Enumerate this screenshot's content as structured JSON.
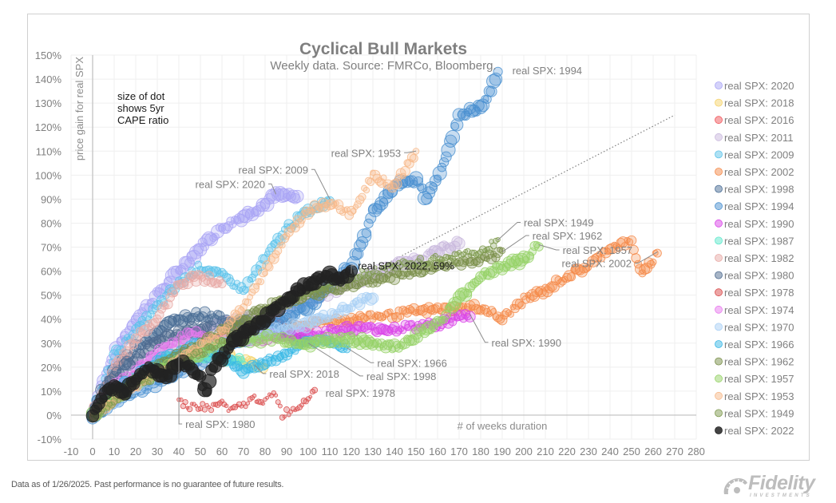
{
  "chart_data": {
    "type": "scatter",
    "title": "Cyclical Bull Markets",
    "subtitle": "Weekly data.  Source: FMRCo, Bloomberg.",
    "xlabel": "# of weeks duration",
    "ylabel": "price gain for real SPX",
    "note": [
      "size of dot",
      "shows 5yr",
      "CAPE ratio"
    ],
    "xlim": [
      -10,
      280
    ],
    "ylim": [
      -10,
      150
    ],
    "x_ticks": [
      -10,
      0,
      10,
      20,
      30,
      40,
      50,
      60,
      70,
      80,
      90,
      100,
      110,
      120,
      130,
      140,
      150,
      160,
      170,
      180,
      190,
      200,
      210,
      220,
      230,
      240,
      250,
      260,
      270,
      280
    ],
    "y_ticks": [
      -10,
      0,
      10,
      20,
      30,
      40,
      50,
      60,
      70,
      80,
      90,
      100,
      110,
      120,
      130,
      140,
      150
    ],
    "y_tick_labels": [
      "-10%",
      "0%",
      "10%",
      "20%",
      "30%",
      "40%",
      "50%",
      "60%",
      "70%",
      "80%",
      "90%",
      "100%",
      "110%",
      "120%",
      "130%",
      "140%",
      "150%"
    ],
    "grid": true,
    "legend_position": "right",
    "reference_line": {
      "style": "dotted",
      "from": [
        0,
        0
      ],
      "to": [
        270,
        125
      ]
    },
    "series": [
      {
        "name": "real SPX: 2020",
        "color": "#aaa5f5",
        "size": 1.1,
        "anchors": [
          [
            0,
            0
          ],
          [
            5,
            15
          ],
          [
            10,
            25
          ],
          [
            20,
            40
          ],
          [
            30,
            50
          ],
          [
            40,
            60
          ],
          [
            50,
            70
          ],
          [
            60,
            78
          ],
          [
            70,
            83
          ],
          [
            80,
            88
          ],
          [
            85,
            92
          ],
          [
            95,
            90
          ]
        ]
      },
      {
        "name": "real SPX: 2018",
        "color": "#f5d36b",
        "size": 0.8,
        "anchors": [
          [
            0,
            0
          ],
          [
            10,
            8
          ],
          [
            20,
            12
          ],
          [
            30,
            18
          ],
          [
            40,
            22
          ],
          [
            50,
            26
          ],
          [
            60,
            28
          ],
          [
            70,
            22
          ],
          [
            80,
            20
          ]
        ]
      },
      {
        "name": "real SPX: 2016",
        "color": "#f0555a",
        "size": 0.7,
        "anchors": [
          [
            0,
            0
          ],
          [
            10,
            7
          ],
          [
            20,
            13
          ],
          [
            30,
            18
          ],
          [
            40,
            24
          ],
          [
            50,
            28
          ],
          [
            60,
            34
          ],
          [
            70,
            38
          ],
          [
            80,
            40
          ],
          [
            90,
            38
          ]
        ]
      },
      {
        "name": "real SPX: 2011",
        "color": "#c9b8dd",
        "size": 0.95,
        "anchors": [
          [
            0,
            0
          ],
          [
            20,
            20
          ],
          [
            40,
            30
          ],
          [
            60,
            38
          ],
          [
            80,
            42
          ],
          [
            100,
            48
          ],
          [
            120,
            55
          ],
          [
            140,
            62
          ],
          [
            160,
            68
          ],
          [
            170,
            72
          ]
        ]
      },
      {
        "name": "real SPX: 2009",
        "color": "#5ec3ea",
        "size": 0.85,
        "anchors": [
          [
            0,
            0
          ],
          [
            10,
            25
          ],
          [
            20,
            35
          ],
          [
            30,
            45
          ],
          [
            40,
            55
          ],
          [
            50,
            62
          ],
          [
            60,
            58
          ],
          [
            70,
            52
          ],
          [
            80,
            65
          ],
          [
            90,
            78
          ],
          [
            100,
            85
          ],
          [
            110,
            90
          ]
        ]
      },
      {
        "name": "real SPX: 2002",
        "color": "#f48a4a",
        "size": 0.85,
        "anchors": [
          [
            0,
            0
          ],
          [
            20,
            15
          ],
          [
            40,
            25
          ],
          [
            60,
            30
          ],
          [
            80,
            35
          ],
          [
            100,
            38
          ],
          [
            120,
            40
          ],
          [
            140,
            42
          ],
          [
            160,
            44
          ],
          [
            180,
            45
          ],
          [
            190,
            40
          ],
          [
            200,
            48
          ],
          [
            210,
            52
          ],
          [
            220,
            58
          ],
          [
            230,
            62
          ],
          [
            240,
            70
          ],
          [
            250,
            72
          ],
          [
            255,
            58
          ],
          [
            262,
            68
          ]
        ]
      },
      {
        "name": "real SPX: 1998",
        "color": "#4a6d95",
        "size": 1.05,
        "anchors": [
          [
            0,
            0
          ],
          [
            10,
            18
          ],
          [
            20,
            28
          ],
          [
            30,
            35
          ],
          [
            40,
            40
          ],
          [
            50,
            42
          ],
          [
            60,
            40
          ],
          [
            70,
            38
          ],
          [
            80,
            36
          ],
          [
            90,
            34
          ],
          [
            100,
            30
          ]
        ]
      },
      {
        "name": "real SPX: 1994",
        "color": "#4a90d0",
        "size": 1.1,
        "anchors": [
          [
            0,
            0
          ],
          [
            20,
            10
          ],
          [
            40,
            18
          ],
          [
            60,
            28
          ],
          [
            80,
            36
          ],
          [
            100,
            45
          ],
          [
            110,
            55
          ],
          [
            120,
            62
          ],
          [
            125,
            72
          ],
          [
            130,
            85
          ],
          [
            140,
            95
          ],
          [
            150,
            98
          ],
          [
            155,
            90
          ],
          [
            165,
            110
          ],
          [
            170,
            125
          ],
          [
            180,
            128
          ],
          [
            185,
            135
          ],
          [
            188,
            144
          ]
        ]
      },
      {
        "name": "real SPX: 1990",
        "color": "#d944e8",
        "size": 0.9,
        "anchors": [
          [
            0,
            0
          ],
          [
            20,
            15
          ],
          [
            40,
            25
          ],
          [
            60,
            30
          ],
          [
            80,
            32
          ],
          [
            100,
            34
          ],
          [
            120,
            36
          ],
          [
            140,
            36
          ],
          [
            160,
            38
          ],
          [
            175,
            42
          ]
        ]
      },
      {
        "name": "real SPX: 1987",
        "color": "#5ee8cc",
        "size": 0.85,
        "anchors": [
          [
            0,
            0
          ],
          [
            10,
            10
          ],
          [
            20,
            16
          ],
          [
            30,
            22
          ],
          [
            40,
            24
          ],
          [
            50,
            25
          ],
          [
            60,
            24
          ],
          [
            70,
            22
          ]
        ]
      },
      {
        "name": "real SPX: 1982",
        "color": "#e8aaa6",
        "size": 0.9,
        "anchors": [
          [
            0,
            0
          ],
          [
            10,
            20
          ],
          [
            20,
            32
          ],
          [
            30,
            40
          ],
          [
            40,
            55
          ],
          [
            50,
            58
          ],
          [
            60,
            55
          ]
        ]
      },
      {
        "name": "real SPX: 1980",
        "color": "#4f6b8f",
        "size": 1.0,
        "anchors": [
          [
            0,
            0
          ],
          [
            5,
            12
          ],
          [
            15,
            20
          ],
          [
            25,
            28
          ],
          [
            35,
            32
          ],
          [
            45,
            35
          ],
          [
            55,
            38
          ]
        ]
      },
      {
        "name": "real SPX: 1978",
        "color": "#d94a4a",
        "size": 0.45,
        "anchors": [
          [
            40,
            6
          ],
          [
            45,
            4
          ],
          [
            55,
            3
          ],
          [
            60,
            5
          ],
          [
            65,
            2
          ],
          [
            70,
            4
          ],
          [
            75,
            7
          ],
          [
            80,
            6
          ],
          [
            85,
            9
          ],
          [
            88,
            0
          ],
          [
            90,
            1
          ],
          [
            95,
            3
          ],
          [
            100,
            8
          ],
          [
            103,
            11
          ]
        ]
      },
      {
        "name": "real SPX: 1974",
        "color": "#e87aee",
        "size": 0.8,
        "anchors": [
          [
            0,
            0
          ],
          [
            10,
            12
          ],
          [
            20,
            18
          ],
          [
            30,
            26
          ],
          [
            40,
            32
          ],
          [
            50,
            34
          ],
          [
            60,
            30
          ]
        ]
      },
      {
        "name": "real SPX: 1970",
        "color": "#a9d0f5",
        "size": 0.95,
        "anchors": [
          [
            0,
            0
          ],
          [
            20,
            12
          ],
          [
            40,
            22
          ],
          [
            60,
            30
          ],
          [
            80,
            34
          ],
          [
            100,
            38
          ],
          [
            120,
            45
          ],
          [
            130,
            50
          ]
        ]
      },
      {
        "name": "real SPX: 1966",
        "color": "#3ab8e6",
        "size": 0.9,
        "anchors": [
          [
            0,
            0
          ],
          [
            10,
            10
          ],
          [
            20,
            16
          ],
          [
            30,
            22
          ],
          [
            40,
            26
          ],
          [
            50,
            30
          ],
          [
            60,
            25
          ],
          [
            70,
            18
          ],
          [
            80,
            22
          ],
          [
            90,
            26
          ],
          [
            100,
            30
          ],
          [
            110,
            32
          ],
          [
            118,
            28
          ]
        ]
      },
      {
        "name": "real SPX: 1962",
        "color": "#7a8f4a",
        "size": 0.85,
        "anchors": [
          [
            0,
            0
          ],
          [
            20,
            15
          ],
          [
            40,
            25
          ],
          [
            60,
            35
          ],
          [
            80,
            45
          ],
          [
            100,
            50
          ],
          [
            120,
            54
          ],
          [
            140,
            58
          ],
          [
            160,
            62
          ],
          [
            180,
            65
          ],
          [
            190,
            68
          ]
        ]
      },
      {
        "name": "real SPX: 1957",
        "color": "#95d266",
        "size": 1.0,
        "anchors": [
          [
            0,
            0
          ],
          [
            20,
            14
          ],
          [
            40,
            22
          ],
          [
            60,
            30
          ],
          [
            80,
            32
          ],
          [
            100,
            30
          ],
          [
            120,
            32
          ],
          [
            140,
            28
          ],
          [
            160,
            38
          ],
          [
            170,
            48
          ],
          [
            180,
            58
          ],
          [
            190,
            62
          ],
          [
            200,
            65
          ],
          [
            207,
            71
          ]
        ]
      },
      {
        "name": "real SPX: 1953",
        "color": "#f7b98a",
        "size": 0.8,
        "anchors": [
          [
            0,
            0
          ],
          [
            20,
            12
          ],
          [
            40,
            22
          ],
          [
            60,
            35
          ],
          [
            70,
            45
          ],
          [
            80,
            60
          ],
          [
            90,
            75
          ],
          [
            100,
            85
          ],
          [
            110,
            88
          ],
          [
            120,
            84
          ],
          [
            130,
            100
          ],
          [
            140,
            95
          ],
          [
            150,
            110
          ]
        ]
      },
      {
        "name": "real SPX: 1949",
        "color": "#7f9a4f",
        "size": 0.55,
        "anchors": [
          [
            0,
            0
          ],
          [
            20,
            12
          ],
          [
            40,
            22
          ],
          [
            60,
            30
          ],
          [
            80,
            42
          ],
          [
            100,
            52
          ],
          [
            120,
            58
          ],
          [
            140,
            62
          ],
          [
            160,
            65
          ],
          [
            180,
            68
          ],
          [
            188,
            73
          ]
        ]
      },
      {
        "name": "real SPX: 2022",
        "color": "#222222",
        "size": 1.2,
        "anchors": [
          [
            0,
            0
          ],
          [
            5,
            8
          ],
          [
            10,
            12
          ],
          [
            15,
            10
          ],
          [
            20,
            14
          ],
          [
            25,
            20
          ],
          [
            30,
            18
          ],
          [
            35,
            16
          ],
          [
            40,
            22
          ],
          [
            45,
            20
          ],
          [
            50,
            15
          ],
          [
            53,
            10
          ],
          [
            55,
            20
          ],
          [
            60,
            24
          ],
          [
            65,
            30
          ],
          [
            70,
            34
          ],
          [
            75,
            36
          ],
          [
            80,
            40
          ],
          [
            85,
            44
          ],
          [
            90,
            48
          ],
          [
            95,
            52
          ],
          [
            100,
            54
          ],
          [
            105,
            56
          ],
          [
            110,
            58
          ],
          [
            115,
            57
          ],
          [
            120,
            59
          ]
        ]
      }
    ],
    "annotations": [
      {
        "text": "real SPX: 1994",
        "series": "real SPX: 1994"
      },
      {
        "text": "real SPX: 1953",
        "series": "real SPX: 1953"
      },
      {
        "text": "real SPX: 2009",
        "series": "real SPX: 2009"
      },
      {
        "text": "real SPX: 2020",
        "series": "real SPX: 2020"
      },
      {
        "text": "real SPX: 1949",
        "series": "real SPX: 1949"
      },
      {
        "text": "real SPX: 1962",
        "series": "real SPX: 1962"
      },
      {
        "text": "real SPX: 1957",
        "series": "real SPX: 1957"
      },
      {
        "text": "real SPX: 2002",
        "series": "real SPX: 2002"
      },
      {
        "text": "real SPX: 2022, 59%",
        "series": "real SPX: 2022"
      },
      {
        "text": "real SPX: 1990",
        "series": "real SPX: 1990"
      },
      {
        "text": "real SPX: 1966",
        "series": "real SPX: 1966"
      },
      {
        "text": "real SPX: 2018",
        "series": "real SPX: 2018"
      },
      {
        "text": "real SPX: 1998",
        "series": "real SPX: 1998"
      },
      {
        "text": "real SPX: 1978",
        "series": "real SPX: 1978"
      },
      {
        "text": "real SPX: 1980",
        "series": "real SPX: 1980"
      }
    ]
  },
  "footer": {
    "disclaimer": "Data as of 1/26/2025. Past performance is no guarantee of future results.",
    "logo_word": "Fidelity",
    "logo_sub": "INVESTMENTS"
  }
}
